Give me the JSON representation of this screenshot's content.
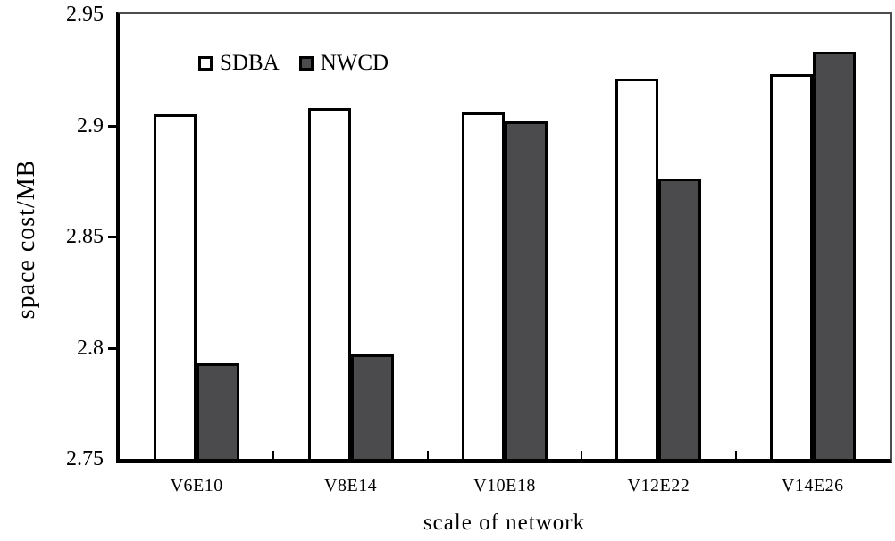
{
  "chart_data": {
    "type": "bar",
    "title": "",
    "xlabel": "scale of network",
    "ylabel": "space cost/MB",
    "categories": [
      "V6E10",
      "V8E14",
      "V10E18",
      "V12E22",
      "V14E26"
    ],
    "series": [
      {
        "name": "SDBA",
        "color": "#ffffff",
        "values": [
          2.905,
          2.908,
          2.906,
          2.921,
          2.923
        ]
      },
      {
        "name": "NWCD",
        "color": "#4b4b4d",
        "values": [
          2.793,
          2.797,
          2.902,
          2.876,
          2.933
        ]
      }
    ],
    "ylim": [
      2.75,
      2.95
    ],
    "yticks": [
      2.95,
      2.9,
      2.85,
      2.8,
      2.75
    ],
    "ytick_labels": [
      "2.95",
      "2.9",
      "2.85",
      "2.8",
      "2.75"
    ],
    "grid": false,
    "legend_position": "inside-top-left",
    "bar_border_color": "#000000",
    "frame_dark_color": "#000000",
    "frame_light_color": "#4d4d4d"
  }
}
